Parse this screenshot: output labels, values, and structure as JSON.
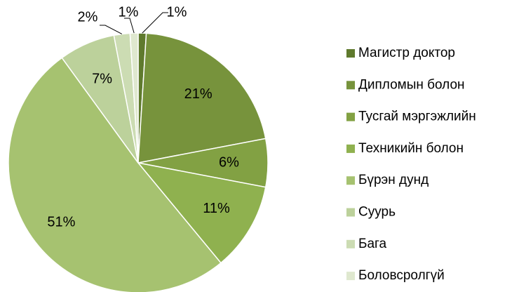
{
  "chart_data": {
    "type": "pie",
    "categories": [
      "Магистр доктор",
      "Дипломын болон",
      "Тусгай мэргэжлийн",
      "Техникийн болон",
      "Бүрэн дунд",
      "Суурь",
      "Бага",
      "Боловсролгүй"
    ],
    "values": [
      1,
      21,
      6,
      11,
      51,
      7,
      2,
      1
    ],
    "value_labels": [
      "1%",
      "21%",
      "6%",
      "11%",
      "51%",
      "7%",
      "2%",
      "1%"
    ],
    "colors": [
      "#5f7a2d",
      "#77933c",
      "#82a143",
      "#8fb14f",
      "#a6c270",
      "#bcd19b",
      "#ccdcb3",
      "#dfe8cf"
    ],
    "legend": "right"
  }
}
